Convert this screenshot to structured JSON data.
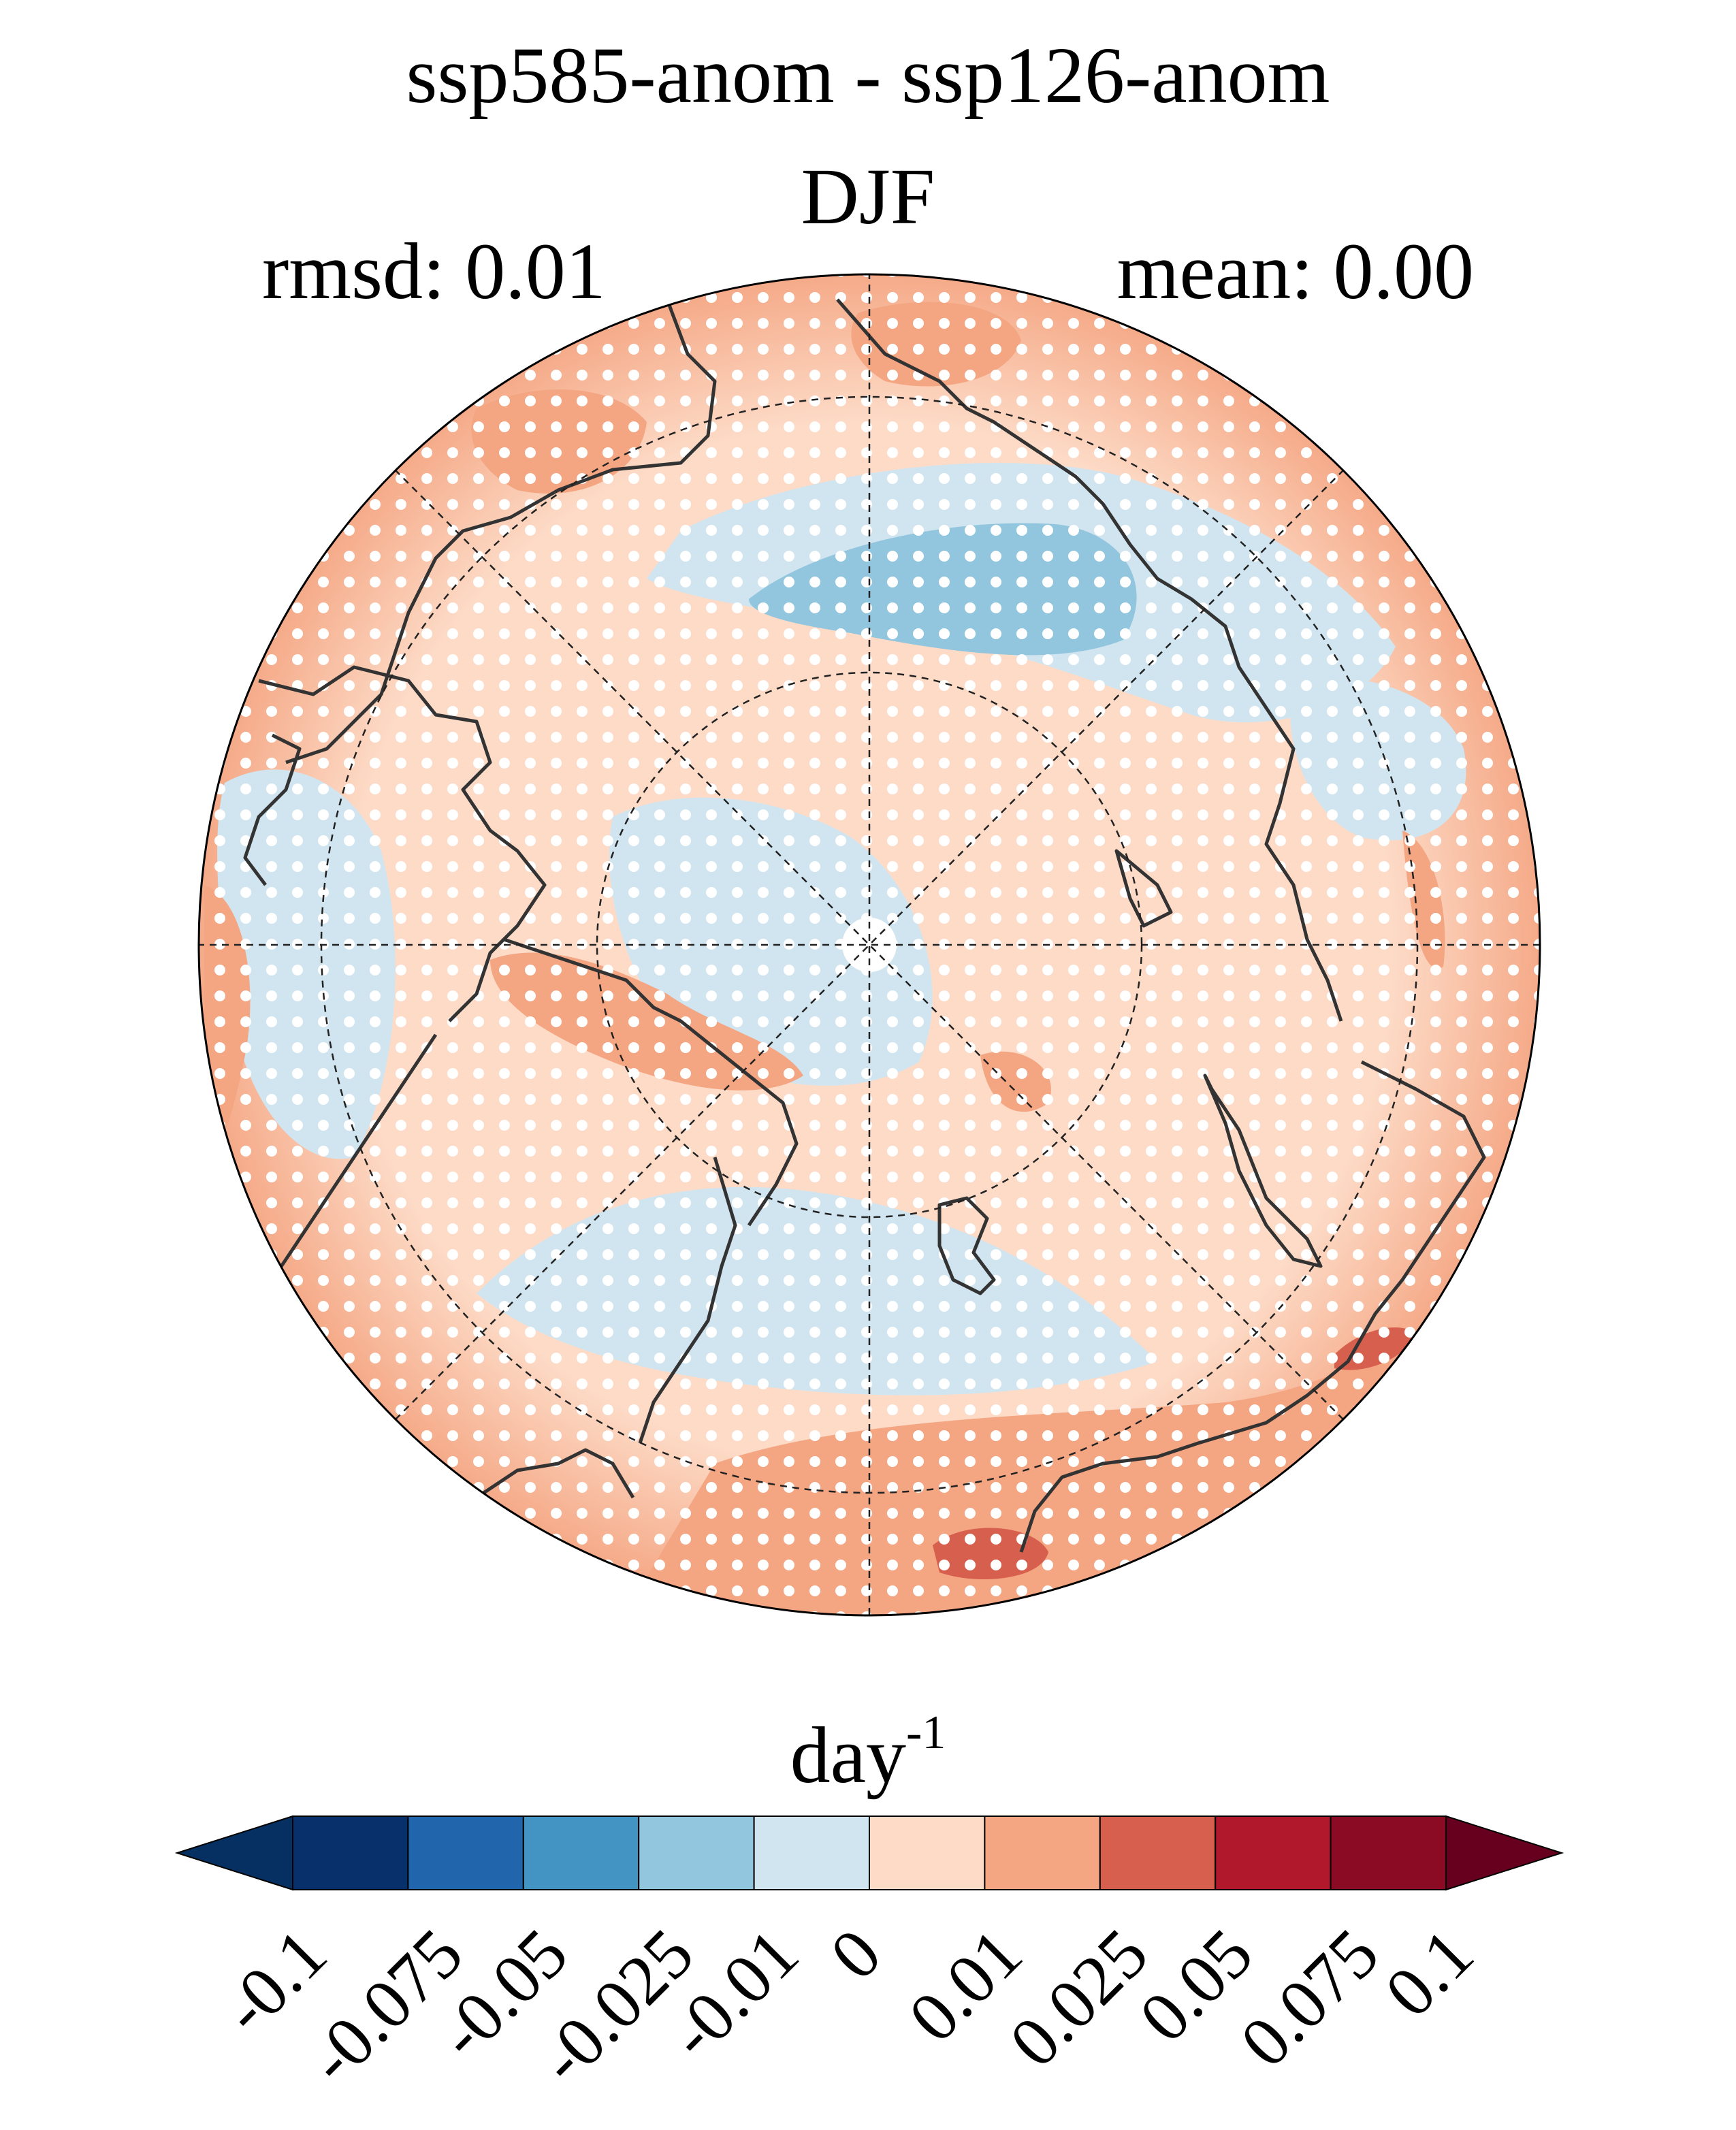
{
  "title": "ssp585-anom - ssp126-anom",
  "season": "DJF",
  "stats": {
    "rmsd": "rmsd: 0.01",
    "mean": "mean: 0.00"
  },
  "colorbar": {
    "label": "day",
    "label_exponent": "-1",
    "ticks": [
      "-0.1",
      "-0.075",
      "-0.05",
      "-0.025",
      "-0.01",
      "0",
      "0.01",
      "0.025",
      "0.05",
      "0.075",
      "0.1"
    ],
    "colors": [
      "#053061",
      "#08306b",
      "#2166ac",
      "#4393c3",
      "#92c5de",
      "#d1e5f0",
      "#fddbc7",
      "#f4a582",
      "#d6604d",
      "#b2182b",
      "#8b0a24",
      "#67001f"
    ]
  },
  "map": {
    "projection": "north polar stereographic",
    "field_colors": {
      "neutral_pos": "#fddbc7",
      "neutral_neg": "#d1e5f0",
      "pos": "#f4a582",
      "strong_pos": "#d6604d",
      "neg": "#92c5de"
    },
    "stippling": "white dots mark significance"
  }
}
